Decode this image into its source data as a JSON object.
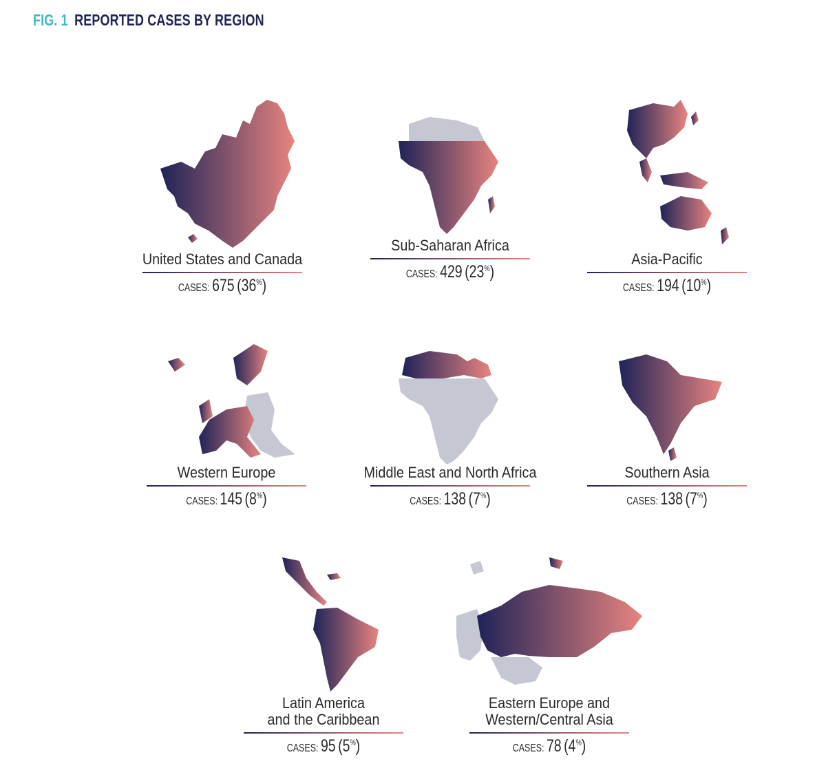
{
  "header": {
    "fig_label": "FIG. 1",
    "title": "REPORTED CASES BY REGION"
  },
  "colors": {
    "gradient_start": "#1f2358",
    "gradient_end": "#e8847f",
    "context_gray": "#c5c8d3",
    "fig_accent": "#39b9c9"
  },
  "chart_data": {
    "type": "table",
    "title": "REPORTED CASES BY REGION",
    "cases_label": "CASES:",
    "regions": [
      {
        "name": "United States and Canada",
        "cases": "675",
        "pct_value": "36",
        "pct_sign": "%"
      },
      {
        "name": "Sub-Saharan Africa",
        "cases": "429",
        "pct_value": "23",
        "pct_sign": "%"
      },
      {
        "name": "Asia-Pacific",
        "cases": "194",
        "pct_value": "10",
        "pct_sign": "%"
      },
      {
        "name": "Western Europe",
        "cases": "145",
        "pct_value": "8",
        "pct_sign": "%"
      },
      {
        "name": "Middle East and North Africa",
        "cases": "138",
        "pct_value": "7",
        "pct_sign": "%"
      },
      {
        "name": "Southern Asia",
        "cases": "138",
        "pct_value": "7",
        "pct_sign": "%"
      },
      {
        "name_line1": "Latin America",
        "name_line2": "and the Caribbean",
        "cases": "95",
        "pct_value": "5",
        "pct_sign": "%"
      },
      {
        "name_line1": "Eastern Europe and",
        "name_line2": "Western/Central Asia",
        "cases": "78",
        "pct_value": "4",
        "pct_sign": "%"
      }
    ]
  }
}
